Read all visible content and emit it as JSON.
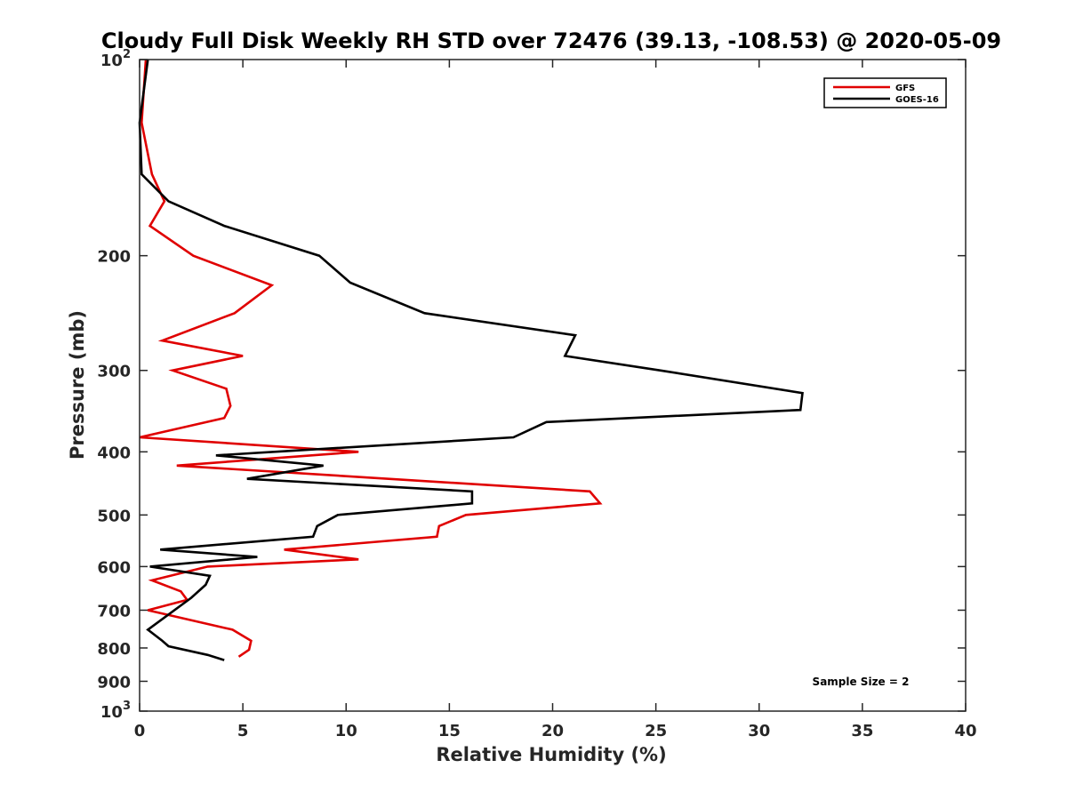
{
  "chart_data": {
    "type": "line",
    "title": "Cloudy Full Disk Weekly RH STD over 72476 (39.13, -108.53) @ 2020-05-09",
    "xlabel": "Relative Humidity (%)",
    "ylabel": "Pressure (mb)",
    "xlim": [
      0,
      40
    ],
    "ylim": [
      100,
      1000
    ],
    "yscale": "log",
    "y_reversed": true,
    "grid": false,
    "legend_position": "top-right",
    "x_ticks": [
      "0",
      "5",
      "10",
      "15",
      "20",
      "25",
      "30",
      "35",
      "40"
    ],
    "y_ticks": [
      {
        "value": 100,
        "base": "10",
        "exp": "2"
      },
      {
        "value": 200,
        "label": "200"
      },
      {
        "value": 300,
        "label": "300"
      },
      {
        "value": 400,
        "label": "400"
      },
      {
        "value": 500,
        "label": "500"
      },
      {
        "value": 600,
        "label": "600"
      },
      {
        "value": 700,
        "label": "700"
      },
      {
        "value": 800,
        "label": "800"
      },
      {
        "value": 900,
        "label": "900"
      },
      {
        "value": 1000,
        "base": "10",
        "exp": "3"
      }
    ],
    "series": [
      {
        "name": "GFS",
        "color": "#e00000",
        "points": [
          {
            "x": 0.3,
            "y": 100
          },
          {
            "x": 0.1,
            "y": 125
          },
          {
            "x": 0.6,
            "y": 150
          },
          {
            "x": 1.2,
            "y": 165
          },
          {
            "x": 0.5,
            "y": 180
          },
          {
            "x": 2.6,
            "y": 200
          },
          {
            "x": 6.4,
            "y": 222
          },
          {
            "x": 4.6,
            "y": 245
          },
          {
            "x": 1.1,
            "y": 270
          },
          {
            "x": 5.0,
            "y": 285
          },
          {
            "x": 1.6,
            "y": 300
          },
          {
            "x": 4.2,
            "y": 320
          },
          {
            "x": 4.4,
            "y": 340
          },
          {
            "x": 4.1,
            "y": 355
          },
          {
            "x": 0.0,
            "y": 380
          },
          {
            "x": 10.6,
            "y": 400
          },
          {
            "x": 1.8,
            "y": 420
          },
          {
            "x": 21.8,
            "y": 460
          },
          {
            "x": 22.3,
            "y": 480
          },
          {
            "x": 15.8,
            "y": 500
          },
          {
            "x": 14.5,
            "y": 520
          },
          {
            "x": 14.4,
            "y": 540
          },
          {
            "x": 7.0,
            "y": 565
          },
          {
            "x": 10.6,
            "y": 585
          },
          {
            "x": 3.3,
            "y": 600
          },
          {
            "x": 0.6,
            "y": 630
          },
          {
            "x": 2.0,
            "y": 655
          },
          {
            "x": 2.3,
            "y": 675
          },
          {
            "x": 0.4,
            "y": 700
          },
          {
            "x": 4.5,
            "y": 750
          },
          {
            "x": 5.4,
            "y": 780
          },
          {
            "x": 5.3,
            "y": 805
          },
          {
            "x": 4.8,
            "y": 825
          }
        ]
      },
      {
        "name": "GOES-16",
        "color": "#000000",
        "points": [
          {
            "x": 0.4,
            "y": 100
          },
          {
            "x": 0.0,
            "y": 125
          },
          {
            "x": 0.1,
            "y": 150
          },
          {
            "x": 1.4,
            "y": 165
          },
          {
            "x": 4.1,
            "y": 180
          },
          {
            "x": 8.7,
            "y": 200
          },
          {
            "x": 10.2,
            "y": 220
          },
          {
            "x": 13.8,
            "y": 245
          },
          {
            "x": 21.1,
            "y": 265
          },
          {
            "x": 20.6,
            "y": 285
          },
          {
            "x": 25.2,
            "y": 300
          },
          {
            "x": 32.1,
            "y": 325
          },
          {
            "x": 32.0,
            "y": 345
          },
          {
            "x": 19.7,
            "y": 360
          },
          {
            "x": 18.1,
            "y": 380
          },
          {
            "x": 3.7,
            "y": 405
          },
          {
            "x": 8.9,
            "y": 420
          },
          {
            "x": 5.2,
            "y": 440
          },
          {
            "x": 16.1,
            "y": 460
          },
          {
            "x": 16.1,
            "y": 480
          },
          {
            "x": 9.6,
            "y": 500
          },
          {
            "x": 8.6,
            "y": 520
          },
          {
            "x": 8.4,
            "y": 540
          },
          {
            "x": 1.0,
            "y": 565
          },
          {
            "x": 5.7,
            "y": 580
          },
          {
            "x": 0.5,
            "y": 600
          },
          {
            "x": 3.4,
            "y": 620
          },
          {
            "x": 3.2,
            "y": 640
          },
          {
            "x": 2.5,
            "y": 670
          },
          {
            "x": 0.4,
            "y": 750
          },
          {
            "x": 1.1,
            "y": 780
          },
          {
            "x": 1.4,
            "y": 795
          },
          {
            "x": 3.3,
            "y": 820
          },
          {
            "x": 4.1,
            "y": 835
          }
        ]
      }
    ],
    "annotations": [
      {
        "text": "Sample Size = 2"
      }
    ]
  }
}
